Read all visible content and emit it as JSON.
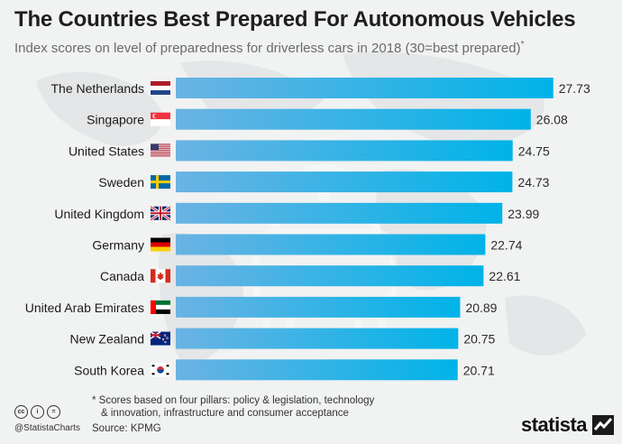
{
  "header": {
    "title": "The Countries Best Prepared For Autonomous Vehicles",
    "subtitle": "Index scores on level of preparedness for driverless cars in 2018 (30=best prepared)",
    "subtitle_marker": "*"
  },
  "chart_data": {
    "type": "bar",
    "orientation": "horizontal",
    "categories": [
      "The Netherlands",
      "Singapore",
      "United States",
      "Sweden",
      "United Kingdom",
      "Germany",
      "Canada",
      "United Arab Emirates",
      "New Zealand",
      "South Korea"
    ],
    "values": [
      27.73,
      26.08,
      24.75,
      24.73,
      23.99,
      22.74,
      22.61,
      20.89,
      20.75,
      20.71
    ],
    "value_labels": [
      "27.73",
      "26.08",
      "24.75",
      "24.73",
      "23.99",
      "22.74",
      "22.61",
      "20.89",
      "20.75",
      "20.71"
    ],
    "flags": [
      "netherlands-flag",
      "singapore-flag",
      "united-states-flag",
      "sweden-flag",
      "united-kingdom-flag",
      "germany-flag",
      "canada-flag",
      "united-arab-emirates-flag",
      "new-zealand-flag",
      "south-korea-flag"
    ],
    "xlim": [
      0,
      30
    ],
    "grid": false,
    "legend": "none",
    "bar_color_start": "#6bb3e3",
    "bar_color_end": "#00b3e8"
  },
  "footer": {
    "note_line1": "* Scores based on four pillars: policy & legislation, technology",
    "note_line2": "& innovation, infrastructure and consumer acceptance",
    "source": "Source: KPMG",
    "handle": "@StatistaCharts",
    "license_icons": [
      "cc-icon",
      "by-icon",
      "nd-icon"
    ],
    "logo": "statista"
  },
  "colors": {
    "background": "#f1f2f2",
    "map": "#e4e5e6",
    "accent": "#00b3e8"
  }
}
